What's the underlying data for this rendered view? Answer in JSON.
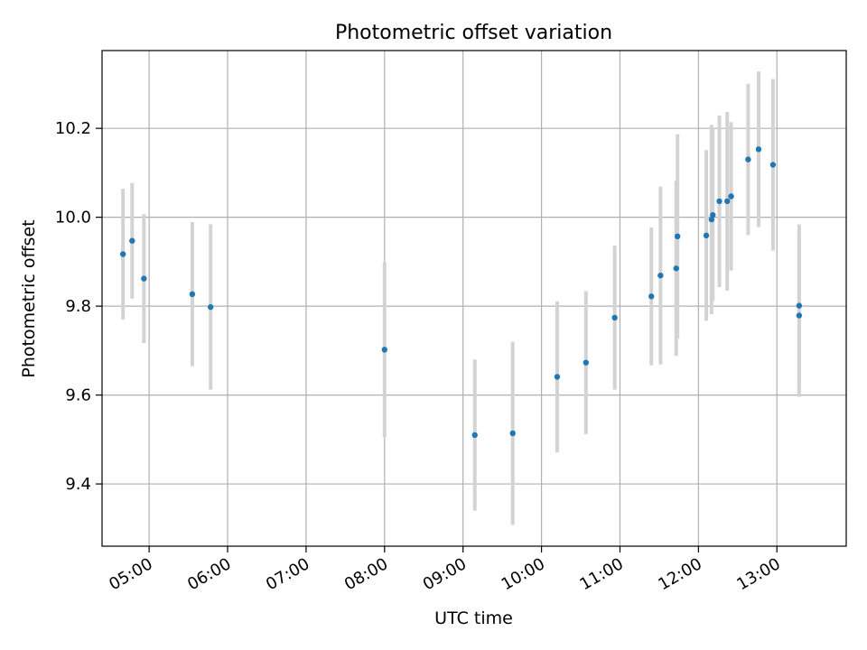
{
  "chart_data": {
    "type": "scatter",
    "title": "Photometric offset variation",
    "xlabel": "UTC time",
    "ylabel": "Photometric offset",
    "x_ticks": [
      "05:00",
      "06:00",
      "07:00",
      "08:00",
      "09:00",
      "10:00",
      "11:00",
      "12:00",
      "13:00"
    ],
    "y_ticks": [
      "9.4",
      "9.6",
      "9.8",
      "10.0",
      "10.2"
    ],
    "xlim": [
      "04:24",
      "13:53"
    ],
    "ylim": [
      9.26,
      10.375
    ],
    "grid": true,
    "marker_color": "#1f77b4",
    "errorbar_color": "#d3d3d3",
    "points": [
      {
        "time": "04:40",
        "y": 9.917,
        "yerr": 0.147
      },
      {
        "time": "04:47",
        "y": 9.947,
        "yerr": 0.13
      },
      {
        "time": "04:56",
        "y": 9.862,
        "yerr": 0.145
      },
      {
        "time": "05:33",
        "y": 9.827,
        "yerr": 0.162
      },
      {
        "time": "05:47",
        "y": 9.798,
        "yerr": 0.186
      },
      {
        "time": "08:00",
        "y": 9.702,
        "yerr": 0.197
      },
      {
        "time": "09:09",
        "y": 9.51,
        "yerr": 0.17
      },
      {
        "time": "09:38",
        "y": 9.514,
        "yerr": 0.206
      },
      {
        "time": "10:12",
        "y": 9.641,
        "yerr": 0.17
      },
      {
        "time": "10:34",
        "y": 9.673,
        "yerr": 0.161
      },
      {
        "time": "10:56",
        "y": 9.774,
        "yerr": 0.162
      },
      {
        "time": "11:24",
        "y": 9.822,
        "yerr": 0.155
      },
      {
        "time": "11:31",
        "y": 9.869,
        "yerr": 0.2
      },
      {
        "time": "11:43",
        "y": 9.885,
        "yerr": 0.197
      },
      {
        "time": "11:44",
        "y": 9.957,
        "yerr": 0.23
      },
      {
        "time": "12:06",
        "y": 9.959,
        "yerr": 0.192
      },
      {
        "time": "12:10",
        "y": 9.995,
        "yerr": 0.213
      },
      {
        "time": "12:11",
        "y": 10.005,
        "yerr": 0.193
      },
      {
        "time": "12:16",
        "y": 10.036,
        "yerr": 0.193
      },
      {
        "time": "12:22",
        "y": 10.036,
        "yerr": 0.201
      },
      {
        "time": "12:25",
        "y": 10.047,
        "yerr": 0.167
      },
      {
        "time": "12:38",
        "y": 10.13,
        "yerr": 0.17
      },
      {
        "time": "12:46",
        "y": 10.153,
        "yerr": 0.175
      },
      {
        "time": "12:57",
        "y": 10.118,
        "yerr": 0.193
      },
      {
        "time": "13:17",
        "y": 9.801,
        "yerr": 0.183
      },
      {
        "time": "13:17",
        "y": 9.779,
        "yerr": 0.183
      }
    ]
  }
}
